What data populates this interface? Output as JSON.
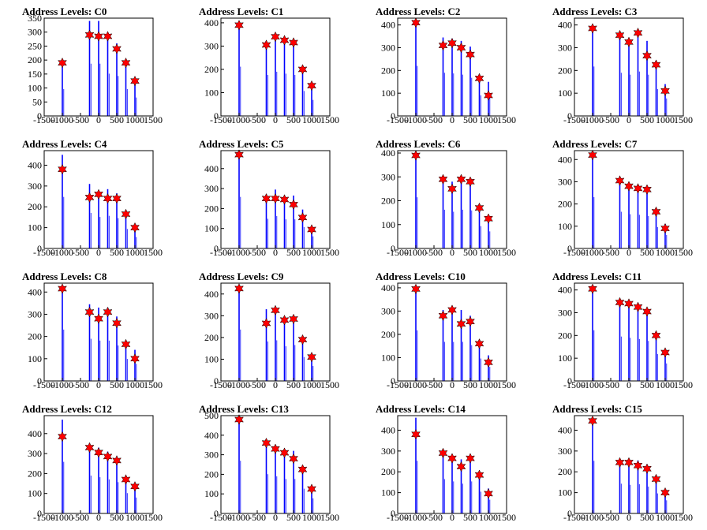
{
  "chart_data": [
    {
      "type": "bar",
      "title": "Address Levels: C0",
      "ylim": [
        0,
        350
      ],
      "yticks": [
        0,
        50,
        100,
        150,
        200,
        250,
        300,
        350
      ],
      "xlim": [
        -1500,
        1500
      ],
      "xticks": [
        -1500,
        -1000,
        -500,
        0,
        500,
        1000,
        1500
      ],
      "x": [
        -1000,
        -250,
        0,
        250,
        500,
        750,
        1000
      ],
      "bar_values": [
        175,
        340,
        340,
        275,
        260,
        175,
        120
      ],
      "marker_values": [
        190,
        290,
        285,
        285,
        240,
        190,
        125
      ]
    },
    {
      "type": "bar",
      "title": "Address Levels: C1",
      "ylim": [
        0,
        420
      ],
      "yticks": [
        0,
        100,
        200,
        300,
        400
      ],
      "xlim": [
        -1500,
        1500
      ],
      "xticks": [
        -1500,
        -1000,
        -500,
        0,
        500,
        1000,
        1500
      ],
      "x": [
        -1000,
        -250,
        0,
        250,
        500,
        750,
        1000
      ],
      "bar_values": [
        385,
        320,
        345,
        330,
        320,
        195,
        125
      ],
      "marker_values": [
        390,
        305,
        340,
        325,
        315,
        200,
        130
      ]
    },
    {
      "type": "bar",
      "title": "Address Levels: C2",
      "ylim": [
        0,
        430
      ],
      "yticks": [
        0,
        100,
        200,
        300,
        400
      ],
      "xlim": [
        -1500,
        1500
      ],
      "xticks": [
        -1500,
        -1000,
        -500,
        0,
        500,
        1000,
        1500
      ],
      "x": [
        -1000,
        -250,
        0,
        250,
        500,
        750,
        1000
      ],
      "bar_values": [
        400,
        345,
        340,
        330,
        305,
        165,
        150
      ],
      "marker_values": [
        410,
        310,
        320,
        300,
        270,
        165,
        90
      ]
    },
    {
      "type": "bar",
      "title": "Address Levels: C3",
      "ylim": [
        0,
        430
      ],
      "yticks": [
        0,
        100,
        200,
        300,
        400
      ],
      "xlim": [
        -1500,
        1500
      ],
      "xticks": [
        -1500,
        -1000,
        -500,
        0,
        500,
        1000,
        1500
      ],
      "x": [
        -1000,
        -250,
        0,
        250,
        500,
        750,
        1000
      ],
      "bar_values": [
        395,
        345,
        330,
        355,
        330,
        215,
        140
      ],
      "marker_values": [
        385,
        355,
        325,
        365,
        265,
        225,
        110
      ]
    },
    {
      "type": "bar",
      "title": "Address Levels: C4",
      "ylim": [
        0,
        470
      ],
      "yticks": [
        0,
        100,
        200,
        300,
        400
      ],
      "xlim": [
        -1500,
        1500
      ],
      "xticks": [
        -1500,
        -1000,
        -500,
        0,
        500,
        1000,
        1500
      ],
      "x": [
        -1000,
        -250,
        0,
        250,
        500,
        750,
        1000
      ],
      "bar_values": [
        450,
        310,
        275,
        285,
        265,
        170,
        100
      ],
      "marker_values": [
        380,
        245,
        260,
        240,
        240,
        165,
        100
      ]
    },
    {
      "type": "bar",
      "title": "Address Levels: C5",
      "ylim": [
        0,
        490
      ],
      "yticks": [
        0,
        100,
        200,
        300,
        400
      ],
      "xlim": [
        -1500,
        1500
      ],
      "xticks": [
        -1500,
        -1000,
        -500,
        0,
        500,
        1000,
        1500
      ],
      "x": [
        -1000,
        -250,
        0,
        250,
        500,
        750,
        1000
      ],
      "bar_values": [
        470,
        270,
        295,
        265,
        265,
        195,
        110
      ],
      "marker_values": [
        470,
        250,
        250,
        245,
        220,
        155,
        95
      ]
    },
    {
      "type": "bar",
      "title": "Address Levels: C6",
      "ylim": [
        0,
        410
      ],
      "yticks": [
        0,
        100,
        200,
        300,
        400
      ],
      "xlim": [
        -1500,
        1500
      ],
      "xticks": [
        -1500,
        -1000,
        -500,
        0,
        500,
        1000,
        1500
      ],
      "x": [
        -1000,
        -250,
        0,
        250,
        500,
        750,
        1000
      ],
      "bar_values": [
        390,
        295,
        280,
        295,
        290,
        170,
        130
      ],
      "marker_values": [
        390,
        290,
        250,
        290,
        280,
        170,
        125
      ]
    },
    {
      "type": "bar",
      "title": "Address Levels: C7",
      "ylim": [
        0,
        440
      ],
      "yticks": [
        0,
        100,
        200,
        300,
        400
      ],
      "xlim": [
        -1500,
        1500
      ],
      "xticks": [
        -1500,
        -1000,
        -500,
        0,
        500,
        1000,
        1500
      ],
      "x": [
        -1000,
        -250,
        0,
        250,
        500,
        750,
        1000
      ],
      "bar_values": [
        420,
        300,
        280,
        275,
        265,
        175,
        110
      ],
      "marker_values": [
        420,
        305,
        280,
        270,
        265,
        165,
        90
      ]
    },
    {
      "type": "bar",
      "title": "Address Levels: C8",
      "ylim": [
        0,
        440
      ],
      "yticks": [
        0,
        100,
        200,
        300,
        400
      ],
      "xlim": [
        -1500,
        1500
      ],
      "xticks": [
        -1500,
        -1000,
        -500,
        0,
        500,
        1000,
        1500
      ],
      "x": [
        -1000,
        -250,
        0,
        250,
        500,
        750,
        1000
      ],
      "bar_values": [
        420,
        345,
        330,
        330,
        290,
        180,
        140
      ],
      "marker_values": [
        415,
        310,
        280,
        310,
        260,
        165,
        100
      ]
    },
    {
      "type": "bar",
      "title": "Address Levels: C9",
      "ylim": [
        0,
        450
      ],
      "yticks": [
        0,
        100,
        200,
        300,
        400
      ],
      "xlim": [
        -1500,
        1500
      ],
      "xticks": [
        -1500,
        -1000,
        -500,
        0,
        500,
        1000,
        1500
      ],
      "x": [
        -1000,
        -250,
        0,
        250,
        500,
        750,
        1000
      ],
      "bar_values": [
        430,
        330,
        340,
        290,
        300,
        200,
        125
      ],
      "marker_values": [
        425,
        265,
        325,
        280,
        285,
        190,
        110
      ]
    },
    {
      "type": "bar",
      "title": "Address Levels: C10",
      "ylim": [
        0,
        420
      ],
      "yticks": [
        0,
        100,
        200,
        300,
        400
      ],
      "xlim": [
        -1500,
        1500
      ],
      "xticks": [
        -1500,
        -1000,
        -500,
        0,
        500,
        1000,
        1500
      ],
      "x": [
        -1000,
        -250,
        0,
        250,
        500,
        750,
        1000
      ],
      "bar_values": [
        395,
        305,
        305,
        305,
        280,
        175,
        110
      ],
      "marker_values": [
        395,
        280,
        305,
        245,
        255,
        160,
        80
      ]
    },
    {
      "type": "bar",
      "title": "Address Levels: C11",
      "ylim": [
        0,
        430
      ],
      "yticks": [
        0,
        100,
        200,
        300,
        400
      ],
      "xlim": [
        -1500,
        1500
      ],
      "xticks": [
        -1500,
        -1000,
        -500,
        0,
        500,
        1000,
        1500
      ],
      "x": [
        -1000,
        -250,
        0,
        250,
        500,
        750,
        1000
      ],
      "bar_values": [
        405,
        355,
        345,
        335,
        320,
        215,
        140
      ],
      "marker_values": [
        405,
        345,
        340,
        325,
        305,
        200,
        125
      ]
    },
    {
      "type": "bar",
      "title": "Address Levels: C12",
      "ylim": [
        0,
        490
      ],
      "yticks": [
        0,
        100,
        200,
        300,
        400
      ],
      "xlim": [
        -1500,
        1500
      ],
      "xticks": [
        -1500,
        -1000,
        -500,
        0,
        500,
        1000,
        1500
      ],
      "x": [
        -1000,
        -250,
        0,
        250,
        500,
        750,
        1000
      ],
      "bar_values": [
        470,
        345,
        330,
        310,
        285,
        185,
        145
      ],
      "marker_values": [
        385,
        330,
        305,
        285,
        265,
        170,
        135
      ]
    },
    {
      "type": "bar",
      "title": "Address Levels: C13",
      "ylim": [
        0,
        500
      ],
      "yticks": [
        0,
        100,
        200,
        300,
        400,
        500
      ],
      "xlim": [
        -1500,
        1500
      ],
      "xticks": [
        -1500,
        -1000,
        -500,
        0,
        500,
        1000,
        1500
      ],
      "x": [
        -1000,
        -250,
        0,
        250,
        500,
        750,
        1000
      ],
      "bar_values": [
        490,
        365,
        345,
        320,
        320,
        230,
        140
      ],
      "marker_values": [
        480,
        360,
        330,
        310,
        280,
        225,
        125
      ]
    },
    {
      "type": "bar",
      "title": "Address Levels: C14",
      "ylim": [
        0,
        470
      ],
      "yticks": [
        0,
        100,
        200,
        300,
        400
      ],
      "xlim": [
        -1500,
        1500
      ],
      "xticks": [
        -1500,
        -1000,
        -500,
        0,
        500,
        1000,
        1500
      ],
      "x": [
        -1000,
        -250,
        0,
        250,
        500,
        750,
        1000
      ],
      "bar_values": [
        460,
        300,
        280,
        260,
        280,
        190,
        120
      ],
      "marker_values": [
        380,
        290,
        265,
        225,
        265,
        185,
        95
      ]
    },
    {
      "type": "bar",
      "title": "Address Levels: C15",
      "ylim": [
        0,
        470
      ],
      "yticks": [
        0,
        100,
        200,
        300,
        400
      ],
      "xlim": [
        -1500,
        1500
      ],
      "xticks": [
        -1500,
        -1000,
        -500,
        0,
        500,
        1000,
        1500
      ],
      "x": [
        -1000,
        -250,
        0,
        250,
        500,
        750,
        1000
      ],
      "bar_values": [
        460,
        260,
        250,
        255,
        235,
        175,
        115
      ],
      "marker_values": [
        445,
        245,
        245,
        230,
        215,
        165,
        100
      ]
    }
  ],
  "colors": {
    "bars": "#0000ff",
    "markers": "#ff0000",
    "marker_edge": "#000000",
    "axes": "#000000"
  }
}
